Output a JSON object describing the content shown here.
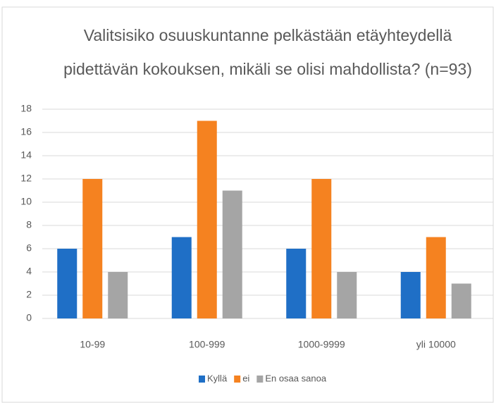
{
  "chart_data": {
    "type": "bar",
    "title": [
      "Valitsisiko osuuskuntanne pelkästään etäyhteydellä",
      "pidettävän kokouksen, mikäli se olisi mahdollista? (n=93)"
    ],
    "categories": [
      "10-99",
      "100-999",
      "1000-9999",
      "yli 10000"
    ],
    "series": [
      {
        "name": "Kyllä",
        "color": "#1f6fc6",
        "values": [
          6,
          7,
          6,
          4
        ]
      },
      {
        "name": "ei",
        "color": "#f58220",
        "values": [
          12,
          17,
          12,
          7
        ]
      },
      {
        "name": "En osaa sanoa",
        "color": "#a5a5a5",
        "values": [
          4,
          11,
          4,
          3
        ]
      }
    ],
    "ylim": [
      0,
      18
    ],
    "yticks": [
      0,
      2,
      4,
      6,
      8,
      10,
      12,
      14,
      16,
      18
    ],
    "grid": true,
    "legend": "bottom"
  }
}
